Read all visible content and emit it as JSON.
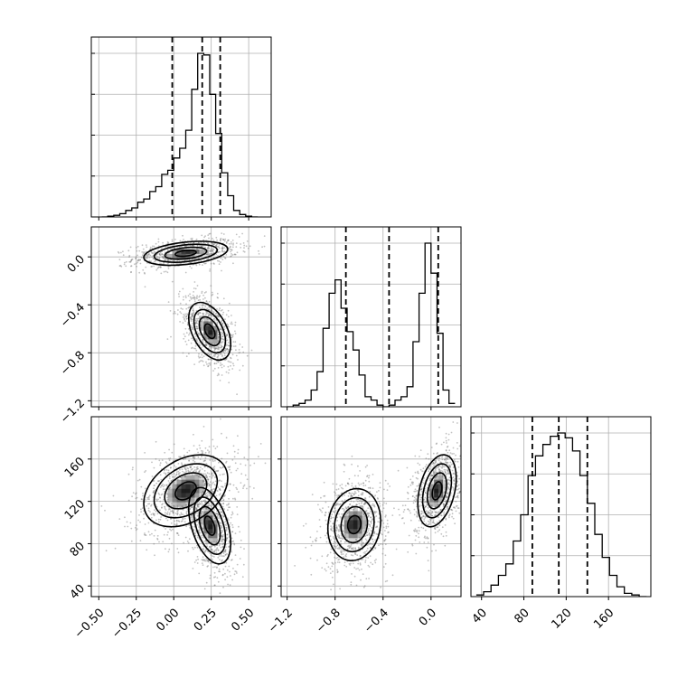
{
  "chart_data": {
    "type": "corner",
    "parameters": [
      {
        "range": [
          -0.55,
          0.65
        ],
        "ticks": [
          -0.5,
          -0.25,
          0.0,
          0.25,
          0.5
        ],
        "tick_labels": [
          "−0.50",
          "−0.25",
          "0.00",
          "0.25",
          "0.50"
        ]
      },
      {
        "range": [
          -1.25,
          0.25
        ],
        "ticks": [
          -1.2,
          -0.8,
          -0.4,
          0.0
        ],
        "tick_labels": [
          "−1.2",
          "−0.8",
          "−0.4",
          "0.0"
        ]
      },
      {
        "range": [
          30,
          200
        ],
        "ticks": [
          40,
          80,
          120,
          160
        ],
        "tick_labels": [
          "40",
          "80",
          "120",
          "160"
        ]
      }
    ],
    "grid": true,
    "marginals": [
      {
        "param": 0,
        "bin_edges": [
          -0.48,
          -0.44,
          -0.4,
          -0.36,
          -0.32,
          -0.28,
          -0.24,
          -0.2,
          -0.16,
          -0.12,
          -0.08,
          -0.04,
          0.0,
          0.04,
          0.08,
          0.12,
          0.16,
          0.2,
          0.24,
          0.28,
          0.32,
          0.36,
          0.4,
          0.44,
          0.48,
          0.52,
          0.56
        ],
        "counts": [
          0.0,
          0.005,
          0.01,
          0.02,
          0.04,
          0.055,
          0.09,
          0.11,
          0.155,
          0.185,
          0.26,
          0.285,
          0.36,
          0.42,
          0.53,
          0.78,
          1.0,
          0.99,
          0.75,
          0.51,
          0.27,
          0.13,
          0.04,
          0.015,
          0.005,
          0.0
        ],
        "quantiles": [
          -0.01,
          0.19,
          0.31
        ]
      },
      {
        "param": 1,
        "bin_edges": [
          -1.2,
          -1.15,
          -1.1,
          -1.05,
          -1.0,
          -0.95,
          -0.9,
          -0.85,
          -0.8,
          -0.75,
          -0.7,
          -0.65,
          -0.6,
          -0.55,
          -0.5,
          -0.45,
          -0.4,
          -0.35,
          -0.3,
          -0.25,
          -0.2,
          -0.15,
          -0.1,
          -0.05,
          0.0,
          0.05,
          0.1,
          0.15,
          0.2
        ],
        "counts": [
          0.0,
          0.01,
          0.02,
          0.04,
          0.1,
          0.21,
          0.47,
          0.68,
          0.76,
          0.59,
          0.45,
          0.34,
          0.19,
          0.06,
          0.04,
          0.01,
          0.0,
          0.01,
          0.04,
          0.06,
          0.12,
          0.39,
          0.68,
          0.98,
          0.8,
          0.44,
          0.1,
          0.02
        ],
        "quantiles": [
          -0.71,
          -0.35,
          0.06
        ]
      },
      {
        "param": 2,
        "bin_edges": [
          35,
          42,
          49,
          56,
          63,
          70,
          77,
          84,
          91,
          98,
          105,
          112,
          119,
          126,
          133,
          140,
          147,
          154,
          161,
          168,
          175,
          182,
          189,
          196
        ],
        "counts": [
          0.01,
          0.03,
          0.07,
          0.13,
          0.2,
          0.34,
          0.5,
          0.74,
          0.86,
          0.93,
          0.98,
          1.0,
          0.97,
          0.89,
          0.74,
          0.57,
          0.38,
          0.24,
          0.13,
          0.06,
          0.02,
          0.01,
          0.0
        ],
        "quantiles": [
          88,
          113,
          140
        ]
      }
    ],
    "joint_panels": [
      {
        "x_param": 0,
        "y_param": 1,
        "clusters": [
          {
            "center": [
              0.08,
              0.03
            ],
            "sd": [
              0.14,
              0.05
            ],
            "rho": 0.35,
            "weight": 0.5
          },
          {
            "center": [
              0.24,
              -0.62
            ],
            "sd": [
              0.07,
              0.12
            ],
            "rho": -0.45,
            "weight": 0.5
          }
        ]
      },
      {
        "x_param": 0,
        "y_param": 2,
        "clusters": [
          {
            "center": [
              0.08,
              130
            ],
            "sd": [
              0.14,
              17
            ],
            "rho": 0.35,
            "weight": 0.5
          },
          {
            "center": [
              0.24,
              97
            ],
            "sd": [
              0.07,
              18
            ],
            "rho": -0.45,
            "weight": 0.5
          }
        ]
      },
      {
        "x_param": 1,
        "y_param": 2,
        "clusters": [
          {
            "center": [
              -0.64,
              98
            ],
            "sd": [
              0.11,
              17
            ],
            "rho": 0.1,
            "weight": 0.5
          },
          {
            "center": [
              0.05,
              130
            ],
            "sd": [
              0.08,
              17
            ],
            "rho": 0.35,
            "weight": 0.5
          }
        ]
      }
    ],
    "contour_levels_sigma": [
      0.5,
      1.0,
      1.5,
      2.0
    ]
  }
}
